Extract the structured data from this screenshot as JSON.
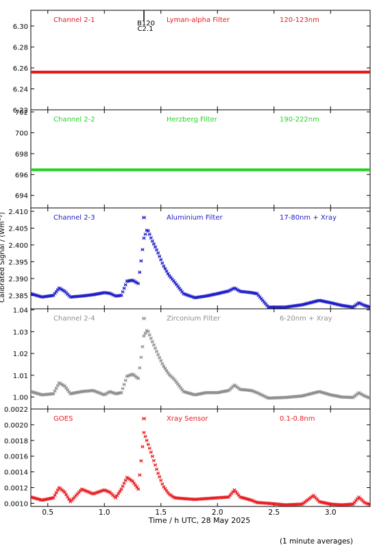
{
  "figure": {
    "ylabel": "Calibrated Signal / (Wm⁻²)",
    "xlabel": "Time / h UTC, 28 May 2025",
    "footnote": "(1 minute averages)",
    "flare_label_top": "B120",
    "flare_label_bottom": "C2.1",
    "colors": {
      "red": "#e8191e",
      "green": "#1fd41f",
      "blue": "#1a1ac8",
      "gray": "#8c8c8c",
      "black": "#000000"
    }
  },
  "chart_data": [
    {
      "type": "scatter",
      "panel_labels": [
        "Channel 2-1",
        "Lyman-alpha Filter",
        "120-123nm"
      ],
      "color": "red",
      "x_range": [
        0.35,
        3.35
      ],
      "ylim": [
        6.22,
        6.315
      ],
      "yticks": [
        "6.22",
        "6.24",
        "6.26",
        "6.28",
        "6.30"
      ],
      "x": [
        0.35,
        3.35
      ],
      "y": [
        6.256,
        6.256
      ],
      "annotation": "flare marker at 1.35 h"
    },
    {
      "type": "scatter",
      "panel_labels": [
        "Channel 2-2",
        "Herzberg Filter",
        "190-222nm"
      ],
      "color": "green",
      "x_range": [
        0.35,
        3.35
      ],
      "ylim": [
        692.8,
        702.2
      ],
      "yticks": [
        "694",
        "696",
        "698",
        "700",
        "702"
      ],
      "x": [
        0.35,
        3.35
      ],
      "y": [
        696.45,
        696.45
      ]
    },
    {
      "type": "scatter",
      "panel_labels": [
        "Channel 2-3",
        "Aluminium Filter",
        "17-80nm + Xray"
      ],
      "color": "blue",
      "x_range": [
        0.35,
        3.35
      ],
      "ylim": [
        2.381,
        2.411
      ],
      "yticks": [
        "2.385",
        "2.390",
        "2.395",
        "2.400",
        "2.405",
        "2.410"
      ],
      "x": [
        0.35,
        0.45,
        0.55,
        0.6,
        0.65,
        0.7,
        0.8,
        0.9,
        1.0,
        1.05,
        1.1,
        1.15,
        1.2,
        1.25,
        1.3,
        1.35,
        1.38,
        1.42,
        1.47,
        1.52,
        1.57,
        1.62,
        1.7,
        1.8,
        1.9,
        2.0,
        2.1,
        2.15,
        2.2,
        2.3,
        2.35,
        2.45,
        2.6,
        2.75,
        2.9,
        3.0,
        3.1,
        3.2,
        3.25,
        3.3,
        3.35
      ],
      "y": [
        2.3855,
        2.3845,
        2.385,
        2.3872,
        2.3862,
        2.3845,
        2.3848,
        2.3852,
        2.3858,
        2.3856,
        2.3848,
        2.385,
        2.3892,
        2.3895,
        2.3885,
        2.402,
        2.4048,
        2.4015,
        2.398,
        2.394,
        2.391,
        2.389,
        2.3855,
        2.3843,
        2.3848,
        2.3855,
        2.3863,
        2.3872,
        2.3862,
        2.3858,
        2.3855,
        2.3815,
        2.3815,
        2.3822,
        2.3835,
        2.3828,
        2.382,
        2.3815,
        2.3828,
        2.382,
        2.3815
      ]
    },
    {
      "type": "scatter",
      "panel_labels": [
        "Channel 2-4",
        "Zirconium Filter",
        "6-20nm + Xray"
      ],
      "color": "gray",
      "x_range": [
        0.35,
        3.35
      ],
      "ylim": [
        0.9945,
        1.0405
      ],
      "yticks": [
        "1.00",
        "1.01",
        "1.02",
        "1.03",
        "1.04"
      ],
      "x": [
        0.35,
        0.45,
        0.55,
        0.6,
        0.65,
        0.7,
        0.8,
        0.9,
        1.0,
        1.05,
        1.1,
        1.15,
        1.2,
        1.25,
        1.3,
        1.35,
        1.38,
        1.42,
        1.47,
        1.52,
        1.57,
        1.62,
        1.7,
        1.8,
        1.9,
        2.0,
        2.1,
        2.15,
        2.2,
        2.3,
        2.35,
        2.45,
        2.6,
        2.75,
        2.9,
        3.0,
        3.1,
        3.2,
        3.25,
        3.3,
        3.35
      ],
      "y": [
        1.0025,
        1.001,
        1.0015,
        1.0065,
        1.005,
        1.0015,
        1.0025,
        1.003,
        1.001,
        1.0025,
        1.0015,
        1.002,
        1.0095,
        1.0105,
        1.0085,
        1.028,
        1.031,
        1.026,
        1.02,
        1.0145,
        1.0105,
        1.008,
        1.0025,
        1.001,
        1.002,
        1.002,
        1.003,
        1.0055,
        1.0035,
        1.003,
        1.002,
        0.9995,
        0.9998,
        1.0005,
        1.0025,
        1.001,
        1.0,
        0.9998,
        1.002,
        1.0005,
        0.9995
      ]
    },
    {
      "type": "scatter",
      "panel_labels": [
        "GOES",
        "Xray Sensor",
        "0.1-0.8nm"
      ],
      "color": "red",
      "x_range": [
        0.35,
        3.35
      ],
      "ylim": [
        0.00096,
        0.0022
      ],
      "yticks": [
        "0.0010",
        "0.0012",
        "0.0014",
        "0.0016",
        "0.0018",
        "0.0020",
        "0.0022"
      ],
      "x": [
        0.35,
        0.45,
        0.55,
        0.6,
        0.65,
        0.7,
        0.8,
        0.9,
        1.0,
        1.05,
        1.1,
        1.15,
        1.2,
        1.25,
        1.3,
        1.35,
        1.37,
        1.42,
        1.47,
        1.52,
        1.57,
        1.62,
        1.7,
        1.8,
        1.9,
        2.0,
        2.1,
        2.15,
        2.2,
        2.3,
        2.35,
        2.45,
        2.6,
        2.75,
        2.85,
        2.9,
        3.0,
        3.1,
        3.2,
        3.25,
        3.3,
        3.35
      ],
      "y": [
        0.00108,
        0.00104,
        0.00107,
        0.0012,
        0.00114,
        0.00102,
        0.00118,
        0.00112,
        0.00117,
        0.00114,
        0.00107,
        0.00118,
        0.00133,
        0.00128,
        0.00118,
        0.0019,
        0.00182,
        0.00162,
        0.0014,
        0.00122,
        0.00112,
        0.00107,
        0.00106,
        0.00105,
        0.00106,
        0.00107,
        0.00108,
        0.00117,
        0.00108,
        0.00104,
        0.00101,
        0.001,
        0.00098,
        0.00099,
        0.0011,
        0.00102,
        0.00099,
        0.00098,
        0.00099,
        0.00108,
        0.00101,
        0.00098
      ]
    }
  ],
  "x_axis": {
    "ticks": [
      0.5,
      1.0,
      1.5,
      2.0,
      2.5,
      3.0
    ],
    "tick_labels": [
      "0.5",
      "1.0",
      "1.5",
      "2.0",
      "2.5",
      "3.0"
    ]
  }
}
